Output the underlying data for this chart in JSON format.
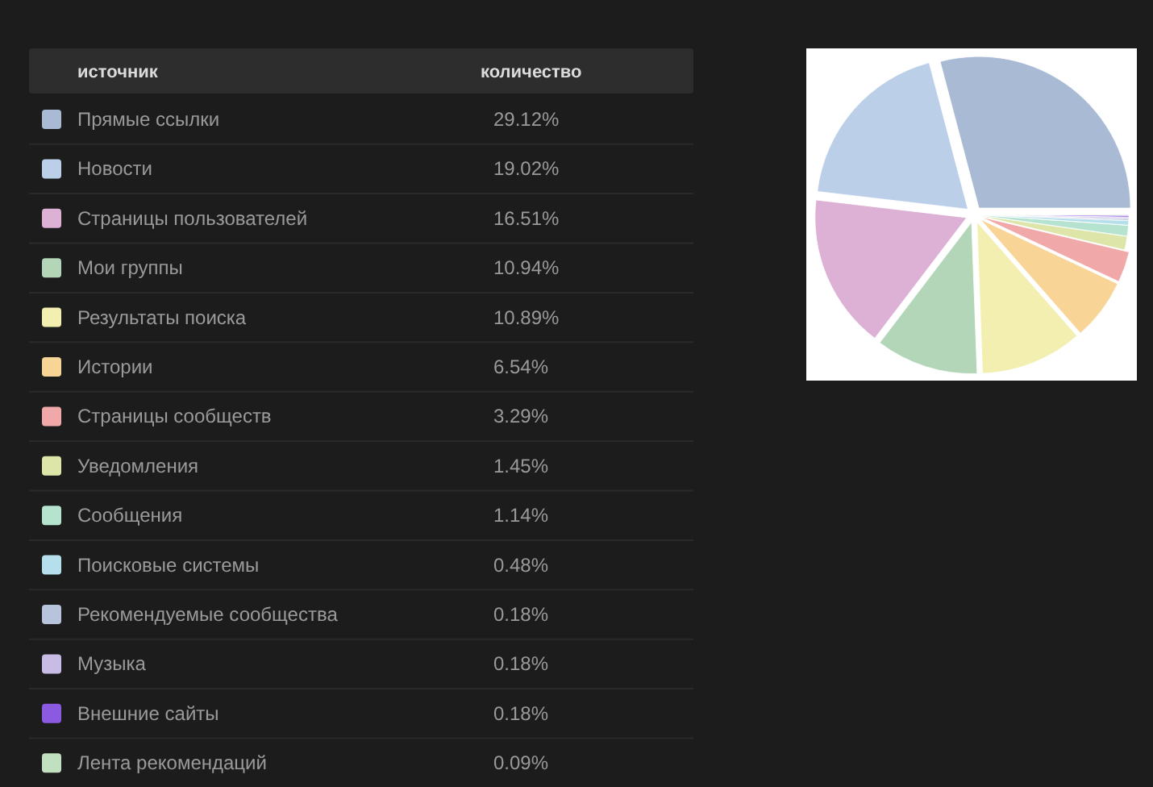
{
  "chart_data": {
    "type": "pie",
    "legend": "left",
    "legend_title": "источник",
    "annotations": [
      "количество"
    ],
    "categories": [
      "Прямые ссылки",
      "Новости",
      "Страницы пользователей",
      "Мои группы",
      "Результаты поиска",
      "Истории",
      "Страницы сообществ",
      "Уведомления",
      "Сообщения",
      "Поисковые системы",
      "Рекомендуемые сообщества",
      "Музыка",
      "Внешние сайты",
      "Лента рекомендаций"
    ],
    "values": [
      29.12,
      19.02,
      16.51,
      10.94,
      10.89,
      6.54,
      3.29,
      1.45,
      1.14,
      0.48,
      0.18,
      0.18,
      0.18,
      0.09
    ],
    "value_labels": [
      "29.12%",
      "19.02%",
      "16.51%",
      "10.94%",
      "10.89%",
      "6.54%",
      "3.29%",
      "1.45%",
      "1.14%",
      "0.48%",
      "0.18%",
      "0.18%",
      "0.18%",
      "0.09%"
    ],
    "colors": [
      "#a9bad4",
      "#bccfe8",
      "#ddb0d6",
      "#b3d6b8",
      "#f2efb0",
      "#f8d596",
      "#f0a8a8",
      "#dde6a8",
      "#b5e3d0",
      "#b5dfea",
      "#b8c4dc",
      "#c8bce6",
      "#8a5ae0",
      "#c0e0c0"
    ]
  }
}
